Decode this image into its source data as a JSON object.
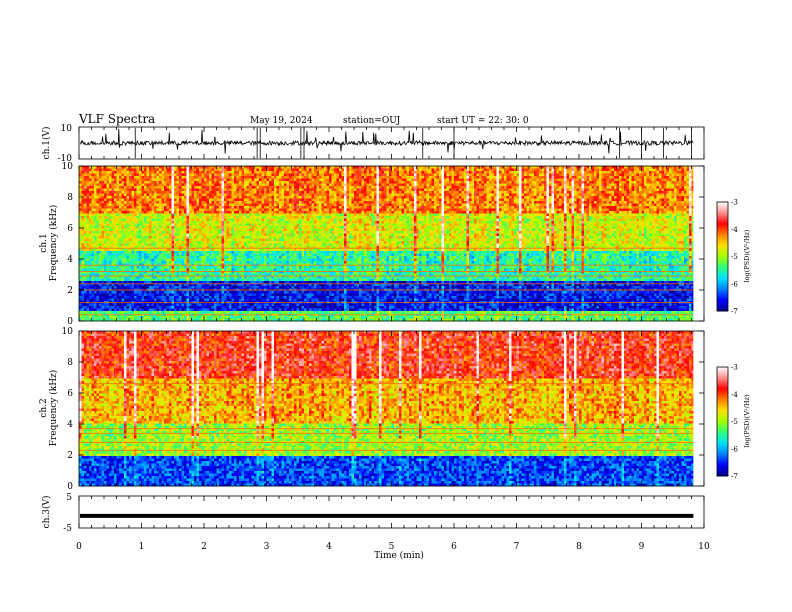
{
  "header": {
    "title": "VLF Spectra",
    "date": "May 19, 2024",
    "station": "station=OUJ",
    "start": "start UT = 22: 30: 0"
  },
  "colors": {
    "colormap": [
      "#000088",
      "#0000ff",
      "#0080ff",
      "#00e0ff",
      "#30ff80",
      "#a0ff00",
      "#ffe000",
      "#ff8000",
      "#ff0000",
      "#ff9090",
      "#ffffff"
    ],
    "waveform": "#000000"
  },
  "chart_data": [
    {
      "type": "line",
      "id": "ch1-waveform",
      "ylabel": "ch.1(V)",
      "ylim": [
        -10,
        10
      ],
      "yticks": [
        "10",
        "-10"
      ],
      "xlim": [
        0,
        10
      ],
      "baseline": 0,
      "note_visible": "noisy waveform around 0 V with sparse spikes"
    },
    {
      "type": "heatmap",
      "id": "ch1-spectrogram",
      "ylabel_line1": "ch.1",
      "ylabel_line2": "Frequency (kHz)",
      "ylim": [
        0,
        10
      ],
      "yticks": [
        "0",
        "2",
        "4",
        "6",
        "8",
        "10"
      ],
      "xlim": [
        0,
        10
      ],
      "data_end_min": 9.83,
      "colorbar": {
        "label": "log(PSD)(V²/Hz)",
        "range": [
          -7,
          -3
        ],
        "ticks": [
          "-3",
          "-4",
          "-5",
          "-6",
          "-7"
        ]
      },
      "bands_khz": [
        {
          "from": 0,
          "to": 0.6,
          "level": -5.3
        },
        {
          "from": 0.6,
          "to": 2.6,
          "level": -6.6
        },
        {
          "from": 2.6,
          "to": 4.5,
          "level": -5.5
        },
        {
          "from": 4.5,
          "to": 7.0,
          "level": -4.8
        },
        {
          "from": 7.0,
          "to": 10,
          "level": -4.2
        }
      ],
      "lines_khz": [
        0.4,
        1.2,
        2.0,
        2.4,
        2.9,
        3.2,
        3.6,
        4.7
      ]
    },
    {
      "type": "heatmap",
      "id": "ch2-spectrogram",
      "ylabel_line1": "ch.2",
      "ylabel_line2": "Frequency (kHz)",
      "ylim": [
        0,
        10
      ],
      "yticks": [
        "0",
        "2",
        "4",
        "6",
        "8",
        "10"
      ],
      "xlim": [
        0,
        10
      ],
      "data_end_min": 9.83,
      "colorbar": {
        "label": "log(PSD)(V²/Hz)",
        "range": [
          -7,
          -3
        ],
        "ticks": [
          "-3",
          "-4",
          "-5",
          "-6",
          "-7"
        ]
      },
      "bands_khz": [
        {
          "from": 0,
          "to": 2.0,
          "level": -6.4
        },
        {
          "from": 2.0,
          "to": 4.0,
          "level": -5.0
        },
        {
          "from": 4.0,
          "to": 7.0,
          "level": -4.4
        },
        {
          "from": 7.0,
          "to": 10,
          "level": -3.8
        }
      ],
      "lines_khz": [
        2.3,
        2.8,
        3.4,
        3.7,
        6.6
      ]
    },
    {
      "type": "line",
      "id": "ch3-waveform",
      "ylabel": "ch.3(V)",
      "ylim": [
        -5,
        5
      ],
      "yticks": [
        "5",
        "-5"
      ],
      "xlim": [
        0,
        10
      ],
      "baseline": -1.2,
      "note_visible": "flat thick line near -1 V"
    }
  ],
  "xaxis": {
    "label": "Time (min)",
    "ticks": [
      "0",
      "1",
      "2",
      "3",
      "4",
      "5",
      "6",
      "7",
      "8",
      "9",
      "10"
    ],
    "range": [
      0,
      10
    ]
  }
}
